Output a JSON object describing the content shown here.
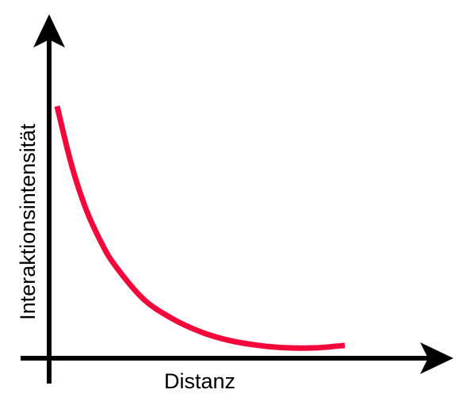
{
  "chart_data": {
    "type": "line",
    "title": "",
    "xlabel": "Distanz",
    "ylabel": "Interaktionsintensität",
    "x_ticks": false,
    "y_ticks": false,
    "grid": false,
    "legend": "none",
    "series": [
      {
        "color": "#f4073b",
        "x": [
          0.0,
          0.05,
          0.1,
          0.15,
          0.2,
          0.3,
          0.4,
          0.5,
          0.6,
          0.7,
          0.8,
          0.9,
          1.0
        ],
        "y": [
          1.0,
          0.76,
          0.58,
          0.45,
          0.35,
          0.21,
          0.13,
          0.075,
          0.04,
          0.02,
          0.01,
          0.01,
          0.02
        ]
      }
    ]
  },
  "colors": {
    "axis": "#000000",
    "curve": "#f4073b"
  }
}
